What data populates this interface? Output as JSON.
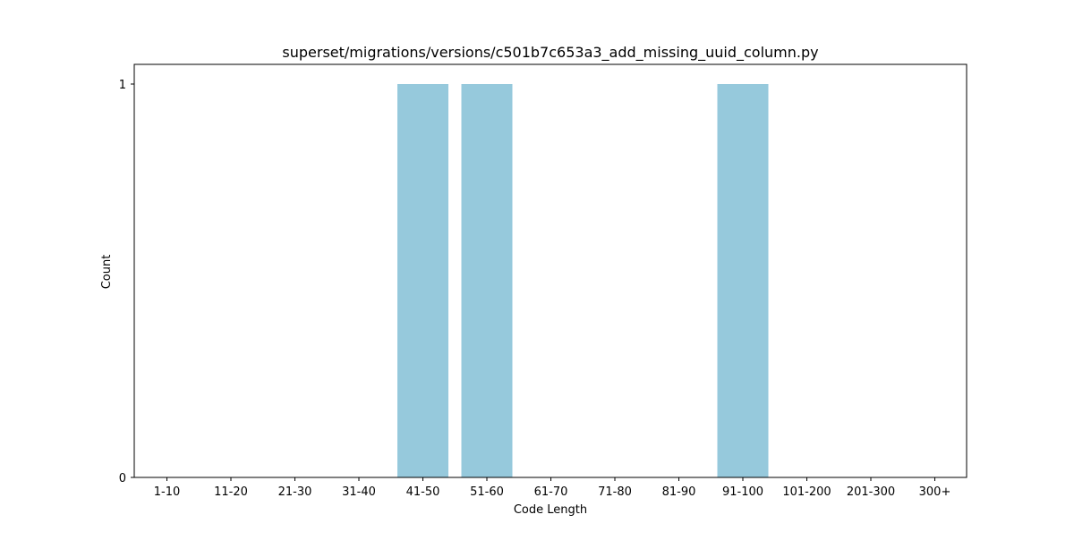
{
  "chart_data": {
    "type": "bar",
    "title": "superset/migrations/versions/c501b7c653a3_add_missing_uuid_column.py",
    "xlabel": "Code Length",
    "ylabel": "Count",
    "categories": [
      "1-10",
      "11-20",
      "21-30",
      "31-40",
      "41-50",
      "51-60",
      "61-70",
      "71-80",
      "81-90",
      "91-100",
      "101-200",
      "201-300",
      "300+"
    ],
    "values": [
      0,
      0,
      0,
      0,
      1,
      1,
      0,
      0,
      0,
      1,
      0,
      0,
      0
    ],
    "ylim": [
      0,
      1
    ],
    "yticks": [
      0,
      1
    ],
    "bar_color": "#96c9dc",
    "grid": false,
    "legend": "none"
  }
}
